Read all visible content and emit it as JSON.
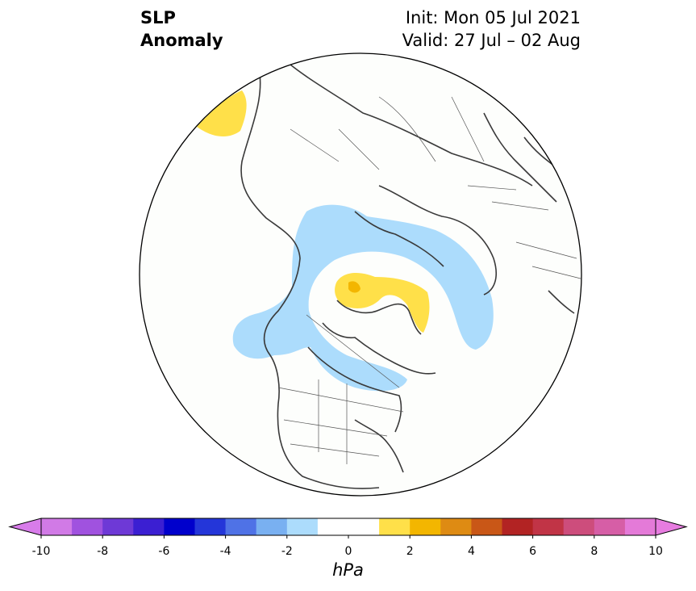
{
  "title": {
    "left_line1": "SLP",
    "left_line2": "Anomaly",
    "right_line1": "Init: Mon 05 Jul 2021",
    "right_line2": "Valid: 27 Jul – 02 Aug"
  },
  "map": {
    "projection": "north-polar-stereographic",
    "background_color": "#fdfefc",
    "coastline_color": "#3a3a3a",
    "border_color": "#555555"
  },
  "colorbar": {
    "unit": "hPa",
    "min": -10,
    "max": 10,
    "step": 1,
    "extend": "both",
    "tick_labels": [
      "-10",
      "-8",
      "-6",
      "-4",
      "-2",
      "0",
      "2",
      "4",
      "6",
      "8",
      "10"
    ],
    "colors": [
      "#d17ae6",
      "#a052df",
      "#6e39d6",
      "#3b1fd2",
      "#0000cc",
      "#2436d9",
      "#4f72e6",
      "#79b0f1",
      "#acdcfc",
      "#ffffff",
      "#ffffff",
      "#ffe049",
      "#f3b600",
      "#de8b13",
      "#c95717",
      "#b22323",
      "#c13446",
      "#cd4d7c",
      "#d65ea6",
      "#e47ad8"
    ],
    "extend_low_color": "#d87cea",
    "extend_high_color": "#e77ce0"
  },
  "anomaly_fill": {
    "negative_1_2": "#acdcfc",
    "positive_1_2": "#ffe049",
    "positive_2_3": "#f3b600"
  }
}
